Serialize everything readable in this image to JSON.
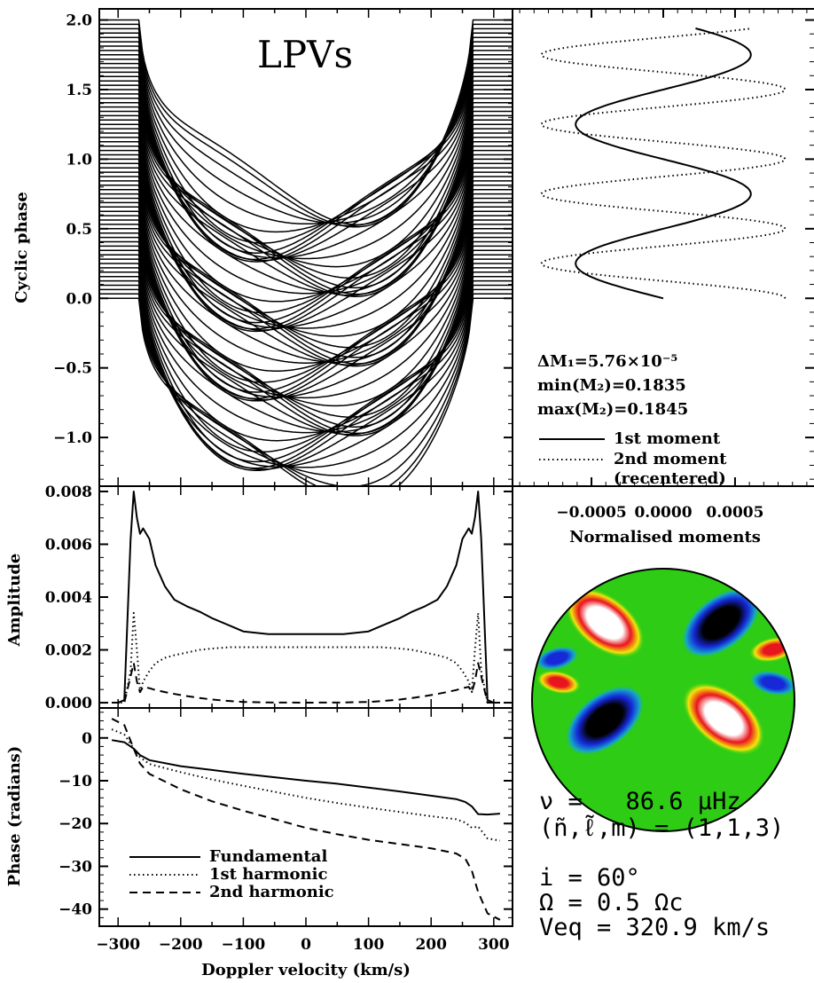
{
  "chart_data": [
    {
      "type": "line",
      "panel": "lpv-stack",
      "title": "LPVs",
      "ylabel": "Cyclic phase",
      "xlim": [
        -330,
        330
      ],
      "ylim": [
        -1.35,
        2.08
      ],
      "yticks": [
        "2.0",
        "1.5",
        "1.0",
        "0.5",
        "0.0",
        "−0.5",
        "−1.0"
      ],
      "n_profiles": 65,
      "phase_step": 0.03125,
      "profile_halfwidth": 265,
      "profile_depth": 1.34
    },
    {
      "type": "line",
      "panel": "moments",
      "xlabel": "Normalised moments",
      "xticks": [
        "−0.0005",
        "0.0000",
        "0.0005"
      ],
      "xlim": [
        -0.00105,
        0.00105
      ],
      "ylim": [
        -1.35,
        2.08
      ],
      "series": [
        {
          "name": "1st moment",
          "style": "solid",
          "amplitude": 0.00061,
          "period": 1.0,
          "phase_min": 0.25
        },
        {
          "name": "2nd moment (recentered)",
          "style": "dotted",
          "amplitude": 0.00085,
          "period": 0.5,
          "phase_max": 0.0
        }
      ],
      "annotations": {
        "dm1": "ΔM₁=5.76×10⁻⁵",
        "min_m2": "min(M₂)=0.1835",
        "max_m2": "max(M₂)=0.1845"
      },
      "legend": [
        {
          "style": "solid",
          "label": "1st moment"
        },
        {
          "style": "dotted",
          "label": "2nd moment"
        },
        {
          "style": "none",
          "label": "(recentered)"
        }
      ]
    },
    {
      "type": "line",
      "panel": "amplitude",
      "ylabel": "Amplitude",
      "xlim": [
        -330,
        330
      ],
      "ylim": [
        -0.0002,
        0.0082
      ],
      "yticks": [
        "0.008",
        "0.006",
        "0.004",
        "0.002",
        "0.000"
      ],
      "x": [
        -310,
        -300,
        -290,
        -280,
        -275,
        -270,
        -265,
        -260,
        -250,
        -240,
        -225,
        -210,
        -190,
        -170,
        -150,
        -120,
        -100,
        -60,
        0,
        60,
        100,
        120,
        150,
        170,
        190,
        210,
        225,
        240,
        250,
        260,
        265,
        270,
        275,
        280,
        290,
        300,
        310
      ],
      "series": [
        {
          "name": "Fundamental",
          "style": "solid",
          "values": [
            0,
            0,
            0.0001,
            0.0062,
            0.008,
            0.007,
            0.0064,
            0.0066,
            0.0062,
            0.0052,
            0.0044,
            0.0039,
            0.00365,
            0.00345,
            0.0032,
            0.0029,
            0.0027,
            0.0026,
            0.0026,
            0.0026,
            0.0027,
            0.0029,
            0.0032,
            0.00345,
            0.00365,
            0.0039,
            0.0044,
            0.0052,
            0.0062,
            0.0066,
            0.0064,
            0.007,
            0.008,
            0.0062,
            0.0001,
            0,
            0
          ]
        },
        {
          "name": "1st harmonic",
          "style": "dotted",
          "values": [
            0,
            0,
            0,
            0.0012,
            0.0034,
            0.002,
            0.0004,
            0.0008,
            0.0012,
            0.0015,
            0.0017,
            0.0018,
            0.0019,
            0.002,
            0.00205,
            0.0021,
            0.0021,
            0.0021,
            0.0021,
            0.0021,
            0.0021,
            0.0021,
            0.00205,
            0.002,
            0.0019,
            0.0018,
            0.0017,
            0.0015,
            0.0012,
            0.0008,
            0.0004,
            0.002,
            0.0034,
            0.0012,
            0,
            0,
            0
          ]
        },
        {
          "name": "2nd harmonic",
          "style": "dashed",
          "values": [
            0,
            0,
            0,
            0.001,
            0.0015,
            0.0008,
            0.0004,
            0.0006,
            0.00055,
            0.00048,
            0.0004,
            0.00033,
            0.00025,
            0.00018,
            0.00012,
            6e-05,
            3e-05,
            1e-05,
            0,
            1e-05,
            3e-05,
            6e-05,
            0.00012,
            0.00018,
            0.00025,
            0.00033,
            0.0004,
            0.00048,
            0.00055,
            0.0006,
            0.0004,
            0.0008,
            0.0015,
            0.001,
            0,
            0,
            0
          ]
        }
      ]
    },
    {
      "type": "line",
      "panel": "phase",
      "xlabel": "Doppler velocity (km/s)",
      "ylabel": "Phase (radians)",
      "xlim": [
        -330,
        330
      ],
      "ylim": [
        -44,
        7
      ],
      "yticks": [
        "0",
        "−10",
        "−20",
        "−30",
        "−40"
      ],
      "xticks": [
        "−300",
        "−200",
        "−100",
        "0",
        "100",
        "200",
        "300"
      ],
      "x": [
        -310,
        -290,
        -275,
        -265,
        -250,
        -200,
        -150,
        -100,
        -50,
        0,
        50,
        100,
        150,
        200,
        240,
        255,
        265,
        275,
        290,
        310
      ],
      "series": [
        {
          "name": "Fundamental",
          "style": "solid",
          "values": [
            -0.5,
            -1,
            -2.5,
            -4,
            -5.2,
            -6.6,
            -7.5,
            -8.4,
            -9.2,
            -10,
            -10.7,
            -11.6,
            -12.5,
            -13.5,
            -14.3,
            -15,
            -16,
            -17.8,
            -17.9,
            -17.7
          ]
        },
        {
          "name": "1st harmonic",
          "style": "dotted",
          "values": [
            2,
            0.8,
            -2.5,
            -4.5,
            -6.1,
            -8,
            -9.7,
            -11.2,
            -12.6,
            -14,
            -15.2,
            -16.3,
            -17.3,
            -18.3,
            -19,
            -19.8,
            -21,
            -20.7,
            -23.5,
            -24
          ]
        },
        {
          "name": "2nd harmonic",
          "style": "dashed",
          "values": [
            4.5,
            3,
            -2.5,
            -6,
            -8.4,
            -12,
            -14.8,
            -17,
            -19,
            -21,
            -22.5,
            -23.8,
            -24.8,
            -25.8,
            -27,
            -28.3,
            -31,
            -36,
            -41,
            -42.5
          ]
        }
      ],
      "legend": [
        {
          "style": "solid",
          "label": "Fundamental"
        },
        {
          "style": "dotted",
          "label": "1st harmonic"
        },
        {
          "style": "dashed",
          "label": "2nd harmonic"
        }
      ]
    }
  ],
  "mode_info": {
    "nu_line": "ν =   86.6 μHz",
    "mode_line": "(ñ,ℓ̃,m) = (1,1,3)",
    "i_line": "i = 60°",
    "omega_line": "Ω = 0.5 Ωc",
    "veq_line": "Veq = 320.9 km/s"
  },
  "star_map": {
    "type": "pulsation-pattern",
    "colors": {
      "background": "#2ecc15",
      "yellow": "#f5e60a",
      "red": "#e8141e",
      "white": "#ffffff",
      "blue": "#1628d8",
      "black": "#000000"
    }
  }
}
